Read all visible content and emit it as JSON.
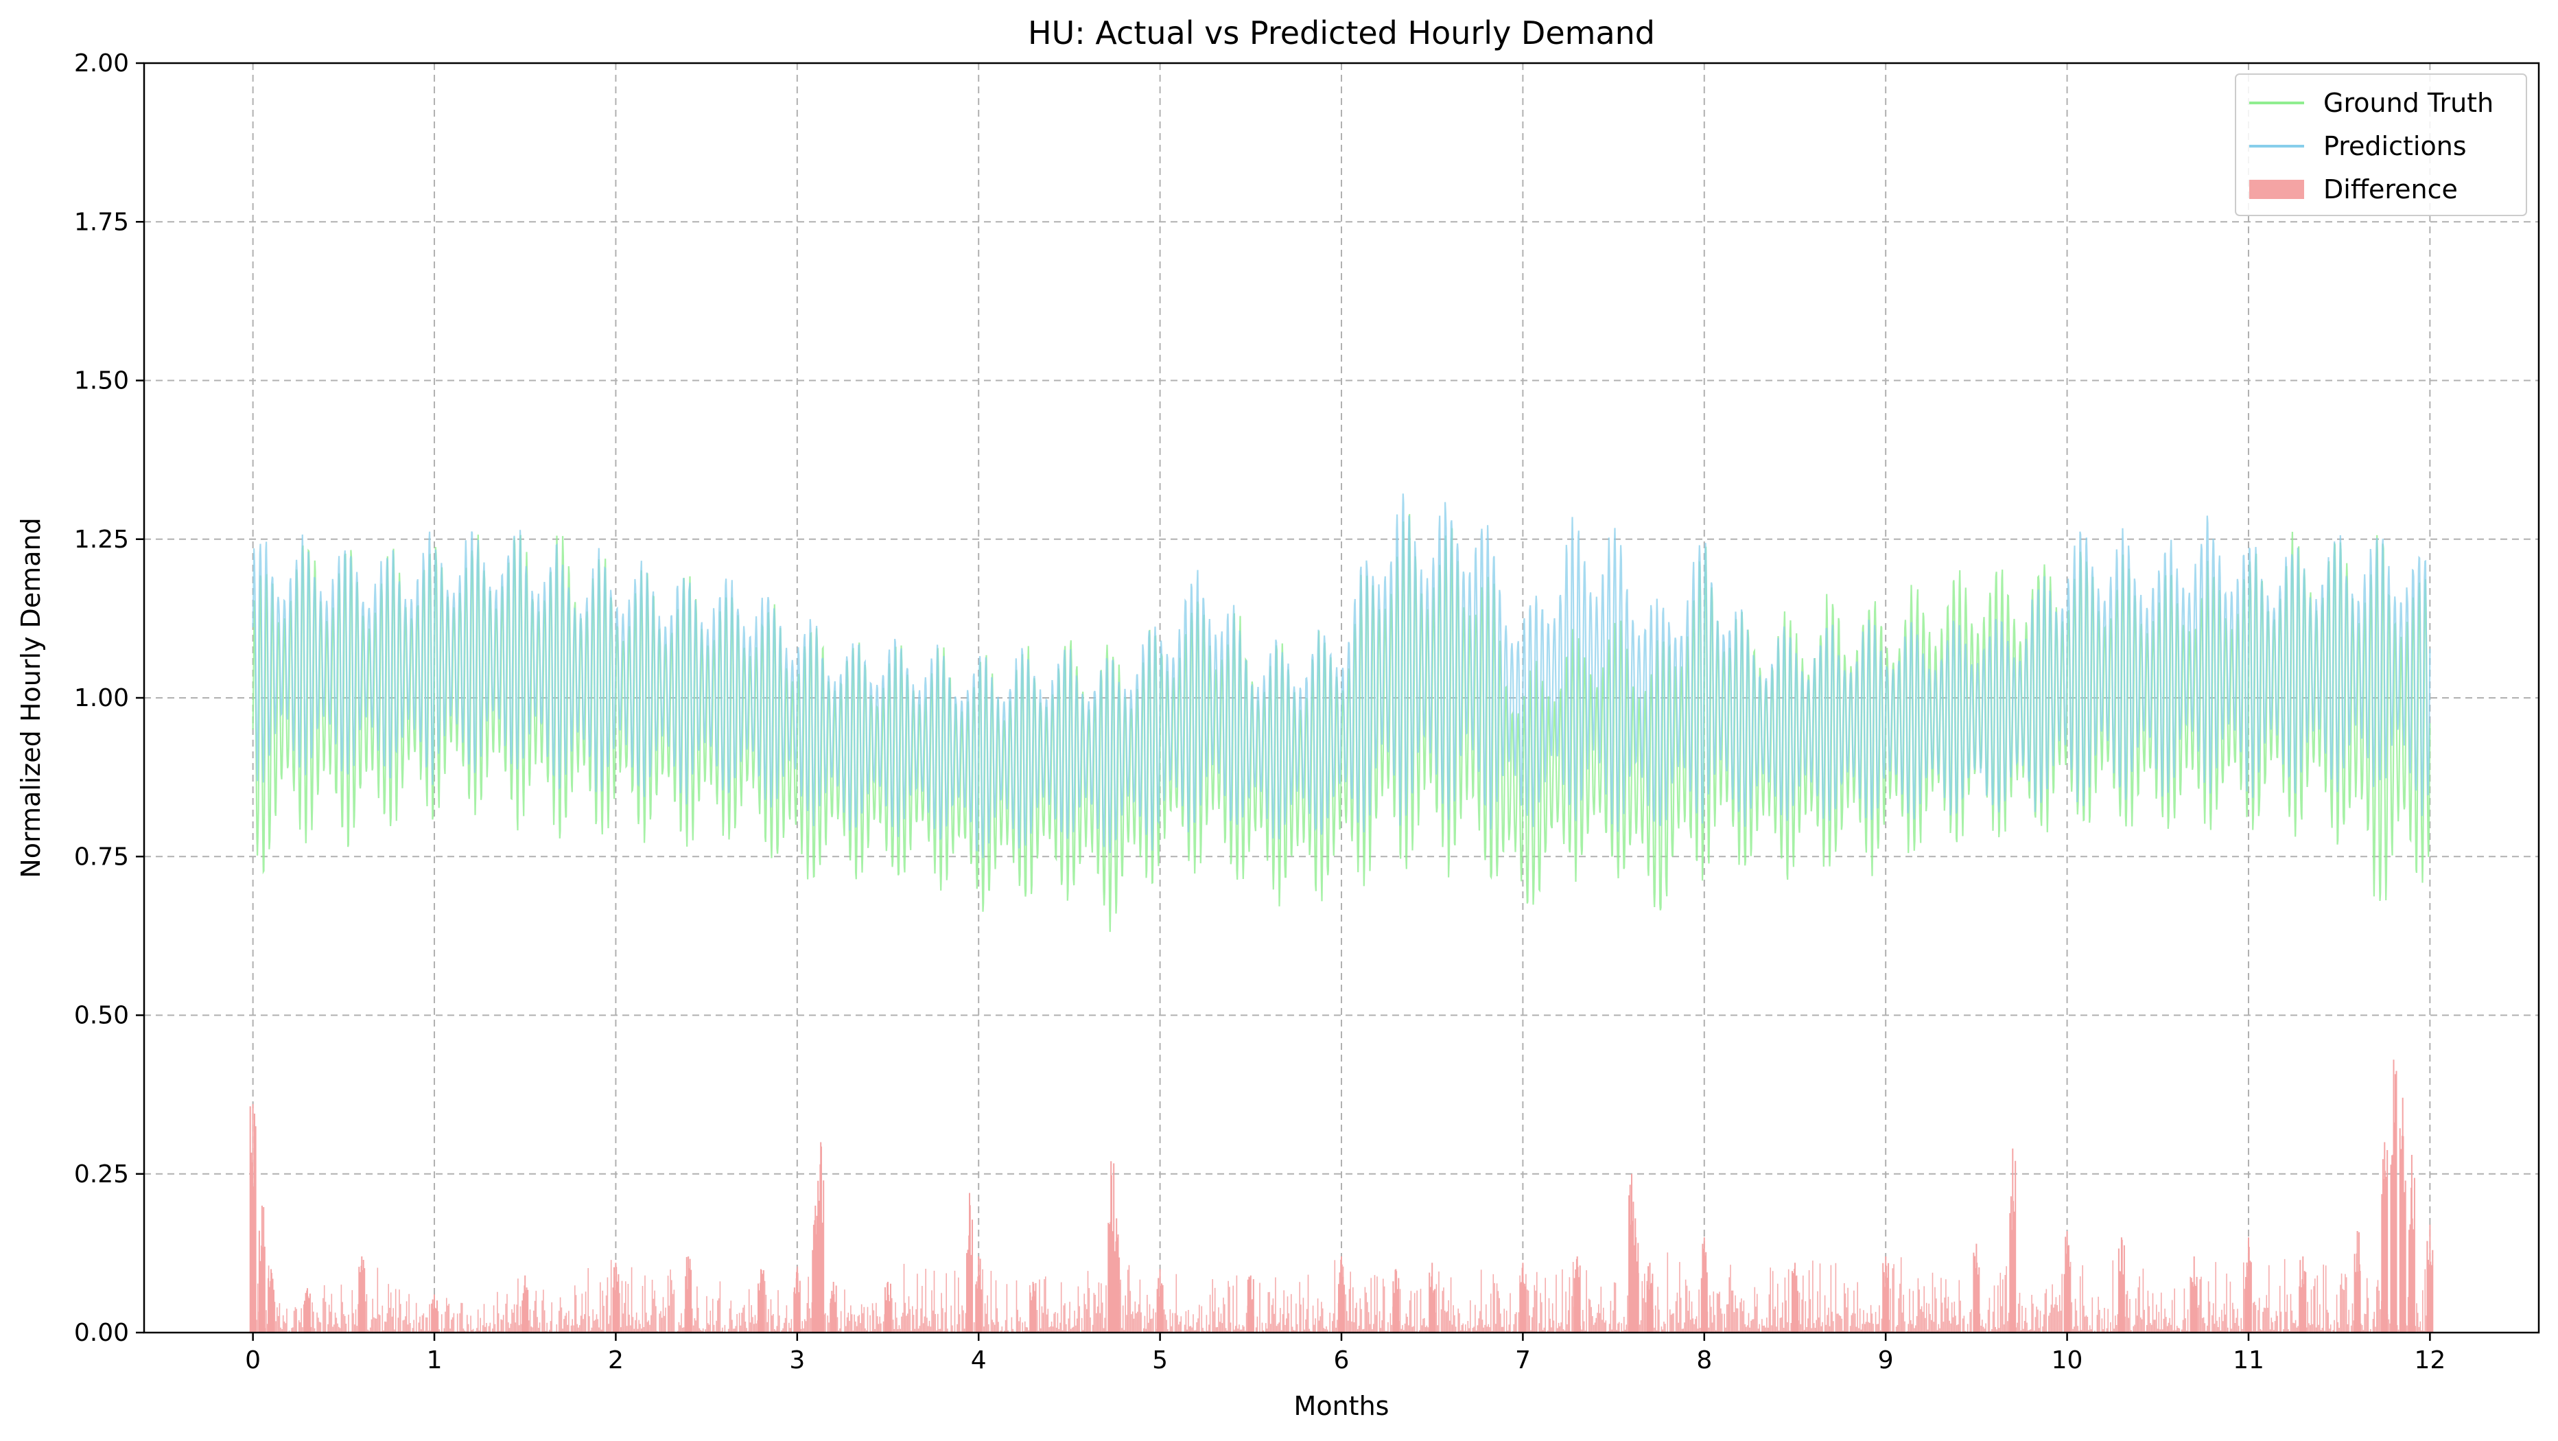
{
  "chart_data": {
    "type": "line",
    "title": "HU: Actual vs Predicted Hourly Demand",
    "xlabel": "Months",
    "ylabel": "Normalized Hourly Demand",
    "xlim": [
      -0.6,
      12.6
    ],
    "ylim": [
      0,
      2
    ],
    "x_ticks": [
      0,
      1,
      2,
      3,
      4,
      5,
      6,
      7,
      8,
      9,
      10,
      11,
      12
    ],
    "x_tick_labels": [
      "0",
      "1",
      "2",
      "3",
      "4",
      "5",
      "6",
      "7",
      "8",
      "9",
      "10",
      "11",
      "12"
    ],
    "y_ticks": [
      0,
      0.25,
      0.5,
      0.75,
      1.0,
      1.25,
      1.5,
      1.75,
      2.0
    ],
    "y_tick_labels": [
      "0.00",
      "0.25",
      "0.50",
      "0.75",
      "1.00",
      "1.25",
      "1.50",
      "1.75",
      "2.00"
    ],
    "grid": true,
    "legend_position": "top-right",
    "legend": [
      "Ground Truth",
      "Predictions",
      "Difference"
    ],
    "series": [
      {
        "name": "Ground Truth",
        "color": "#90ee90",
        "kind": "line",
        "x": [
          0,
          0.25,
          0.5,
          0.75,
          1,
          1.25,
          1.5,
          1.75,
          2,
          2.25,
          2.5,
          2.75,
          3,
          3.25,
          3.5,
          3.75,
          4,
          4.25,
          4.5,
          4.75,
          5,
          5.25,
          5.5,
          5.75,
          6,
          6.25,
          6.5,
          6.75,
          7,
          7.25,
          7.5,
          7.75,
          8,
          8.25,
          8.5,
          8.75,
          9,
          9.25,
          9.5,
          9.75,
          10,
          10.25,
          10.5,
          10.75,
          11,
          11.25,
          11.5,
          11.75,
          12
        ],
        "upper": [
          1.2,
          1.28,
          1.25,
          1.24,
          1.27,
          1.27,
          1.28,
          1.26,
          1.22,
          1.21,
          1.2,
          1.17,
          1.15,
          1.11,
          1.1,
          1.09,
          1.08,
          1.09,
          1.12,
          1.1,
          1.13,
          1.19,
          1.12,
          1.1,
          1.13,
          1.3,
          1.3,
          1.27,
          1.05,
          1.12,
          1.15,
          1.1,
          1.27,
          1.14,
          1.15,
          1.18,
          1.18,
          1.2,
          1.23,
          1.22,
          1.25,
          1.24,
          1.21,
          1.22,
          1.24,
          1.27,
          1.28,
          1.27,
          1.2
        ],
        "lower": [
          0.7,
          0.76,
          0.75,
          0.77,
          0.8,
          0.8,
          0.78,
          0.76,
          0.77,
          0.76,
          0.75,
          0.76,
          0.68,
          0.71,
          0.69,
          0.7,
          0.65,
          0.67,
          0.66,
          0.62,
          0.71,
          0.71,
          0.68,
          0.66,
          0.68,
          0.7,
          0.71,
          0.7,
          0.64,
          0.71,
          0.7,
          0.63,
          0.7,
          0.71,
          0.7,
          0.71,
          0.72,
          0.74,
          0.76,
          0.76,
          0.77,
          0.77,
          0.77,
          0.78,
          0.77,
          0.77,
          0.75,
          0.63,
          0.72
        ]
      },
      {
        "name": "Predictions",
        "color": "#87ceeb",
        "kind": "line",
        "x": [
          0,
          0.25,
          0.5,
          0.75,
          1,
          1.25,
          1.5,
          1.75,
          2,
          2.25,
          2.5,
          2.75,
          3,
          3.25,
          3.5,
          3.75,
          4,
          4.25,
          4.5,
          4.75,
          5,
          5.25,
          5.5,
          5.75,
          6,
          6.25,
          6.5,
          6.75,
          7,
          7.25,
          7.5,
          7.75,
          8,
          8.25,
          8.5,
          8.75,
          9,
          9.25,
          9.5,
          9.75,
          10,
          10.25,
          10.5,
          10.75,
          11,
          11.25,
          11.5,
          11.75,
          12
        ],
        "upper": [
          1.27,
          1.26,
          1.26,
          1.25,
          1.27,
          1.28,
          1.28,
          1.24,
          1.24,
          1.22,
          1.21,
          1.2,
          1.15,
          1.1,
          1.11,
          1.09,
          1.08,
          1.09,
          1.09,
          1.08,
          1.15,
          1.24,
          1.1,
          1.1,
          1.14,
          1.34,
          1.33,
          1.34,
          1.15,
          1.29,
          1.29,
          1.16,
          1.29,
          1.12,
          1.12,
          1.13,
          1.13,
          1.13,
          1.14,
          1.15,
          1.28,
          1.28,
          1.25,
          1.3,
          1.26,
          1.26,
          1.27,
          1.27,
          1.25
        ],
        "lower": [
          0.85,
          0.87,
          0.86,
          0.86,
          0.86,
          0.87,
          0.86,
          0.84,
          0.84,
          0.83,
          0.83,
          0.82,
          0.8,
          0.78,
          0.78,
          0.77,
          0.74,
          0.75,
          0.76,
          0.74,
          0.76,
          0.78,
          0.77,
          0.76,
          0.77,
          0.78,
          0.79,
          0.79,
          0.78,
          0.79,
          0.78,
          0.77,
          0.78,
          0.79,
          0.79,
          0.79,
          0.8,
          0.8,
          0.8,
          0.81,
          0.81,
          0.82,
          0.83,
          0.84,
          0.84,
          0.84,
          0.84,
          0.84,
          0.8
        ]
      },
      {
        "name": "Difference",
        "color": "#f4a4a4",
        "kind": "bar",
        "x": [
          0,
          0.05,
          0.1,
          0.3,
          0.6,
          1,
          1.5,
          2,
          2.4,
          2.8,
          3,
          3.1,
          3.13,
          3.2,
          3.5,
          3.95,
          4.0,
          4.3,
          4.73,
          4.76,
          5,
          5.5,
          6,
          6.3,
          6.5,
          7,
          7.3,
          7.6,
          7.62,
          7.7,
          8,
          8.5,
          9,
          9.5,
          9.7,
          10,
          10.3,
          10.7,
          11,
          11.3,
          11.6,
          11.75,
          11.8,
          11.85,
          11.9,
          12
        ],
        "values": [
          0.36,
          0.2,
          0.1,
          0.07,
          0.12,
          0.06,
          0.09,
          0.11,
          0.12,
          0.1,
          0.1,
          0.2,
          0.3,
          0.08,
          0.08,
          0.22,
          0.12,
          0.08,
          0.27,
          0.18,
          0.1,
          0.09,
          0.12,
          0.1,
          0.11,
          0.11,
          0.12,
          0.25,
          0.18,
          0.11,
          0.15,
          0.11,
          0.12,
          0.14,
          0.29,
          0.16,
          0.15,
          0.12,
          0.15,
          0.12,
          0.16,
          0.3,
          0.43,
          0.37,
          0.28,
          0.17
        ]
      }
    ]
  }
}
